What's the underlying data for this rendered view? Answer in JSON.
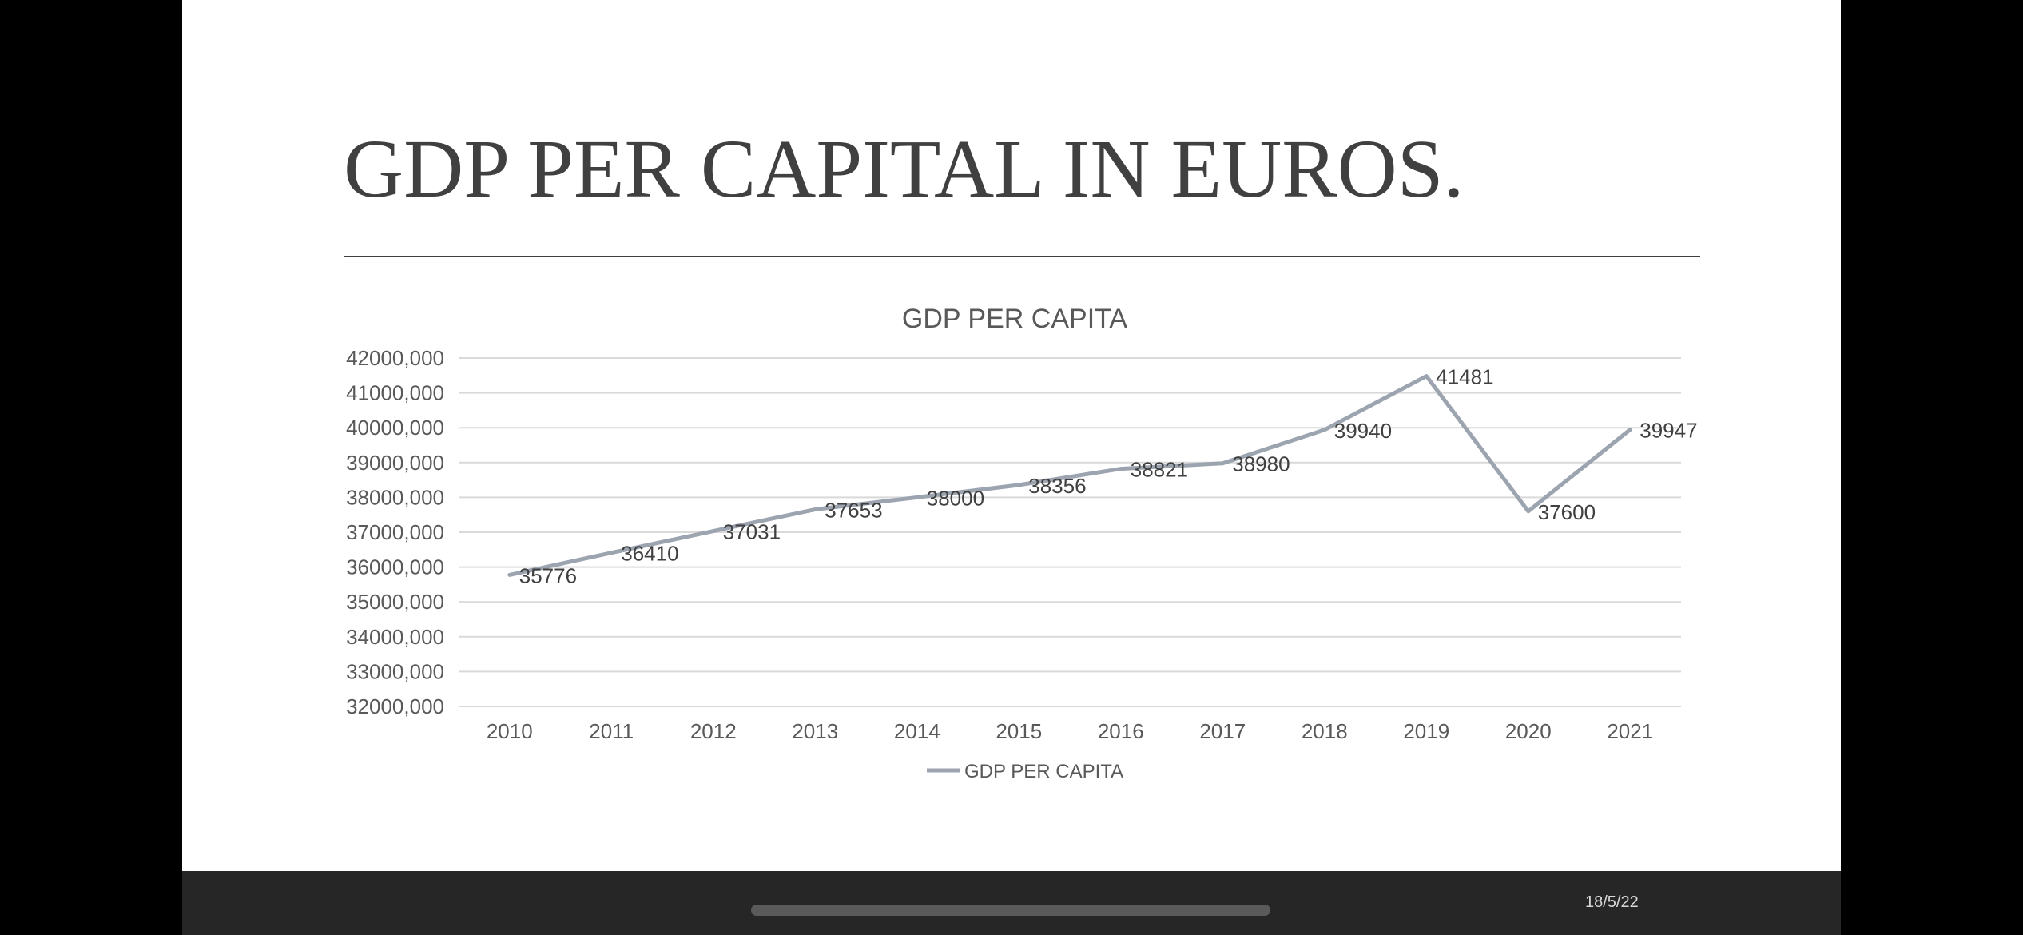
{
  "slide": {
    "title": "GDP PER CAPITAL IN EUROS.",
    "date": "18/5/22"
  },
  "colors": {
    "series_line": "#9ca4b0",
    "gridline": "#d9d9d9",
    "text": "#595959"
  },
  "chart_data": {
    "type": "line",
    "title": "GDP PER CAPITA",
    "xlabel": "",
    "ylabel": "",
    "categories": [
      "2010",
      "2011",
      "2012",
      "2013",
      "2014",
      "2015",
      "2016",
      "2017",
      "2018",
      "2019",
      "2020",
      "2021"
    ],
    "series": [
      {
        "name": "GDP PER CAPITA",
        "values": [
          35776,
          36410,
          37031,
          37653,
          38000,
          38356,
          38821,
          38980,
          39940,
          41481,
          37600,
          39947
        ]
      }
    ],
    "ylim": [
      32000,
      42000
    ],
    "yticks": [
      32000,
      33000,
      34000,
      35000,
      36000,
      37000,
      38000,
      39000,
      40000,
      41000,
      42000
    ],
    "ytick_labels": [
      "32000,000",
      "33000,000",
      "34000,000",
      "35000,000",
      "36000,000",
      "37000,000",
      "38000,000",
      "39000,000",
      "40000,000",
      "41000,000",
      "42000,000"
    ],
    "grid": true,
    "legend": "bottom",
    "data_labels": true
  }
}
